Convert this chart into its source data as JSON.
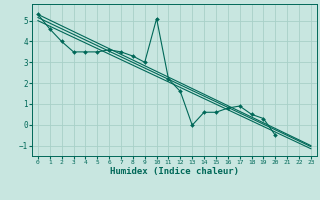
{
  "title": "",
  "xlabel": "Humidex (Indice chaleur)",
  "background_color": "#c8e6e0",
  "grid_color": "#a8d0c8",
  "line_color": "#006858",
  "xlim": [
    -0.5,
    23.5
  ],
  "ylim": [
    -1.5,
    5.8
  ],
  "xticks": [
    0,
    1,
    2,
    3,
    4,
    5,
    6,
    7,
    8,
    9,
    10,
    11,
    12,
    13,
    14,
    15,
    16,
    17,
    18,
    19,
    20,
    21,
    22,
    23
  ],
  "yticks": [
    -1,
    0,
    1,
    2,
    3,
    4,
    5
  ],
  "series": [
    {
      "x": [
        0,
        1,
        2,
        3,
        4,
        5,
        6,
        7,
        8,
        9,
        10,
        11,
        12,
        13,
        14,
        15,
        16,
        17,
        18,
        19,
        20
      ],
      "y": [
        5.3,
        4.6,
        4.0,
        3.5,
        3.5,
        3.5,
        3.6,
        3.5,
        3.3,
        3.0,
        5.1,
        2.2,
        1.6,
        -0.02,
        0.6,
        0.6,
        0.8,
        0.9,
        0.5,
        0.3,
        -0.5
      ],
      "has_markers": true
    },
    {
      "x": [
        0,
        23
      ],
      "y": [
        5.3,
        -1.0
      ],
      "has_markers": false
    },
    {
      "x": [
        0,
        23
      ],
      "y": [
        5.15,
        -1.05
      ],
      "has_markers": false
    },
    {
      "x": [
        0,
        23
      ],
      "y": [
        5.0,
        -1.15
      ],
      "has_markers": false
    }
  ]
}
